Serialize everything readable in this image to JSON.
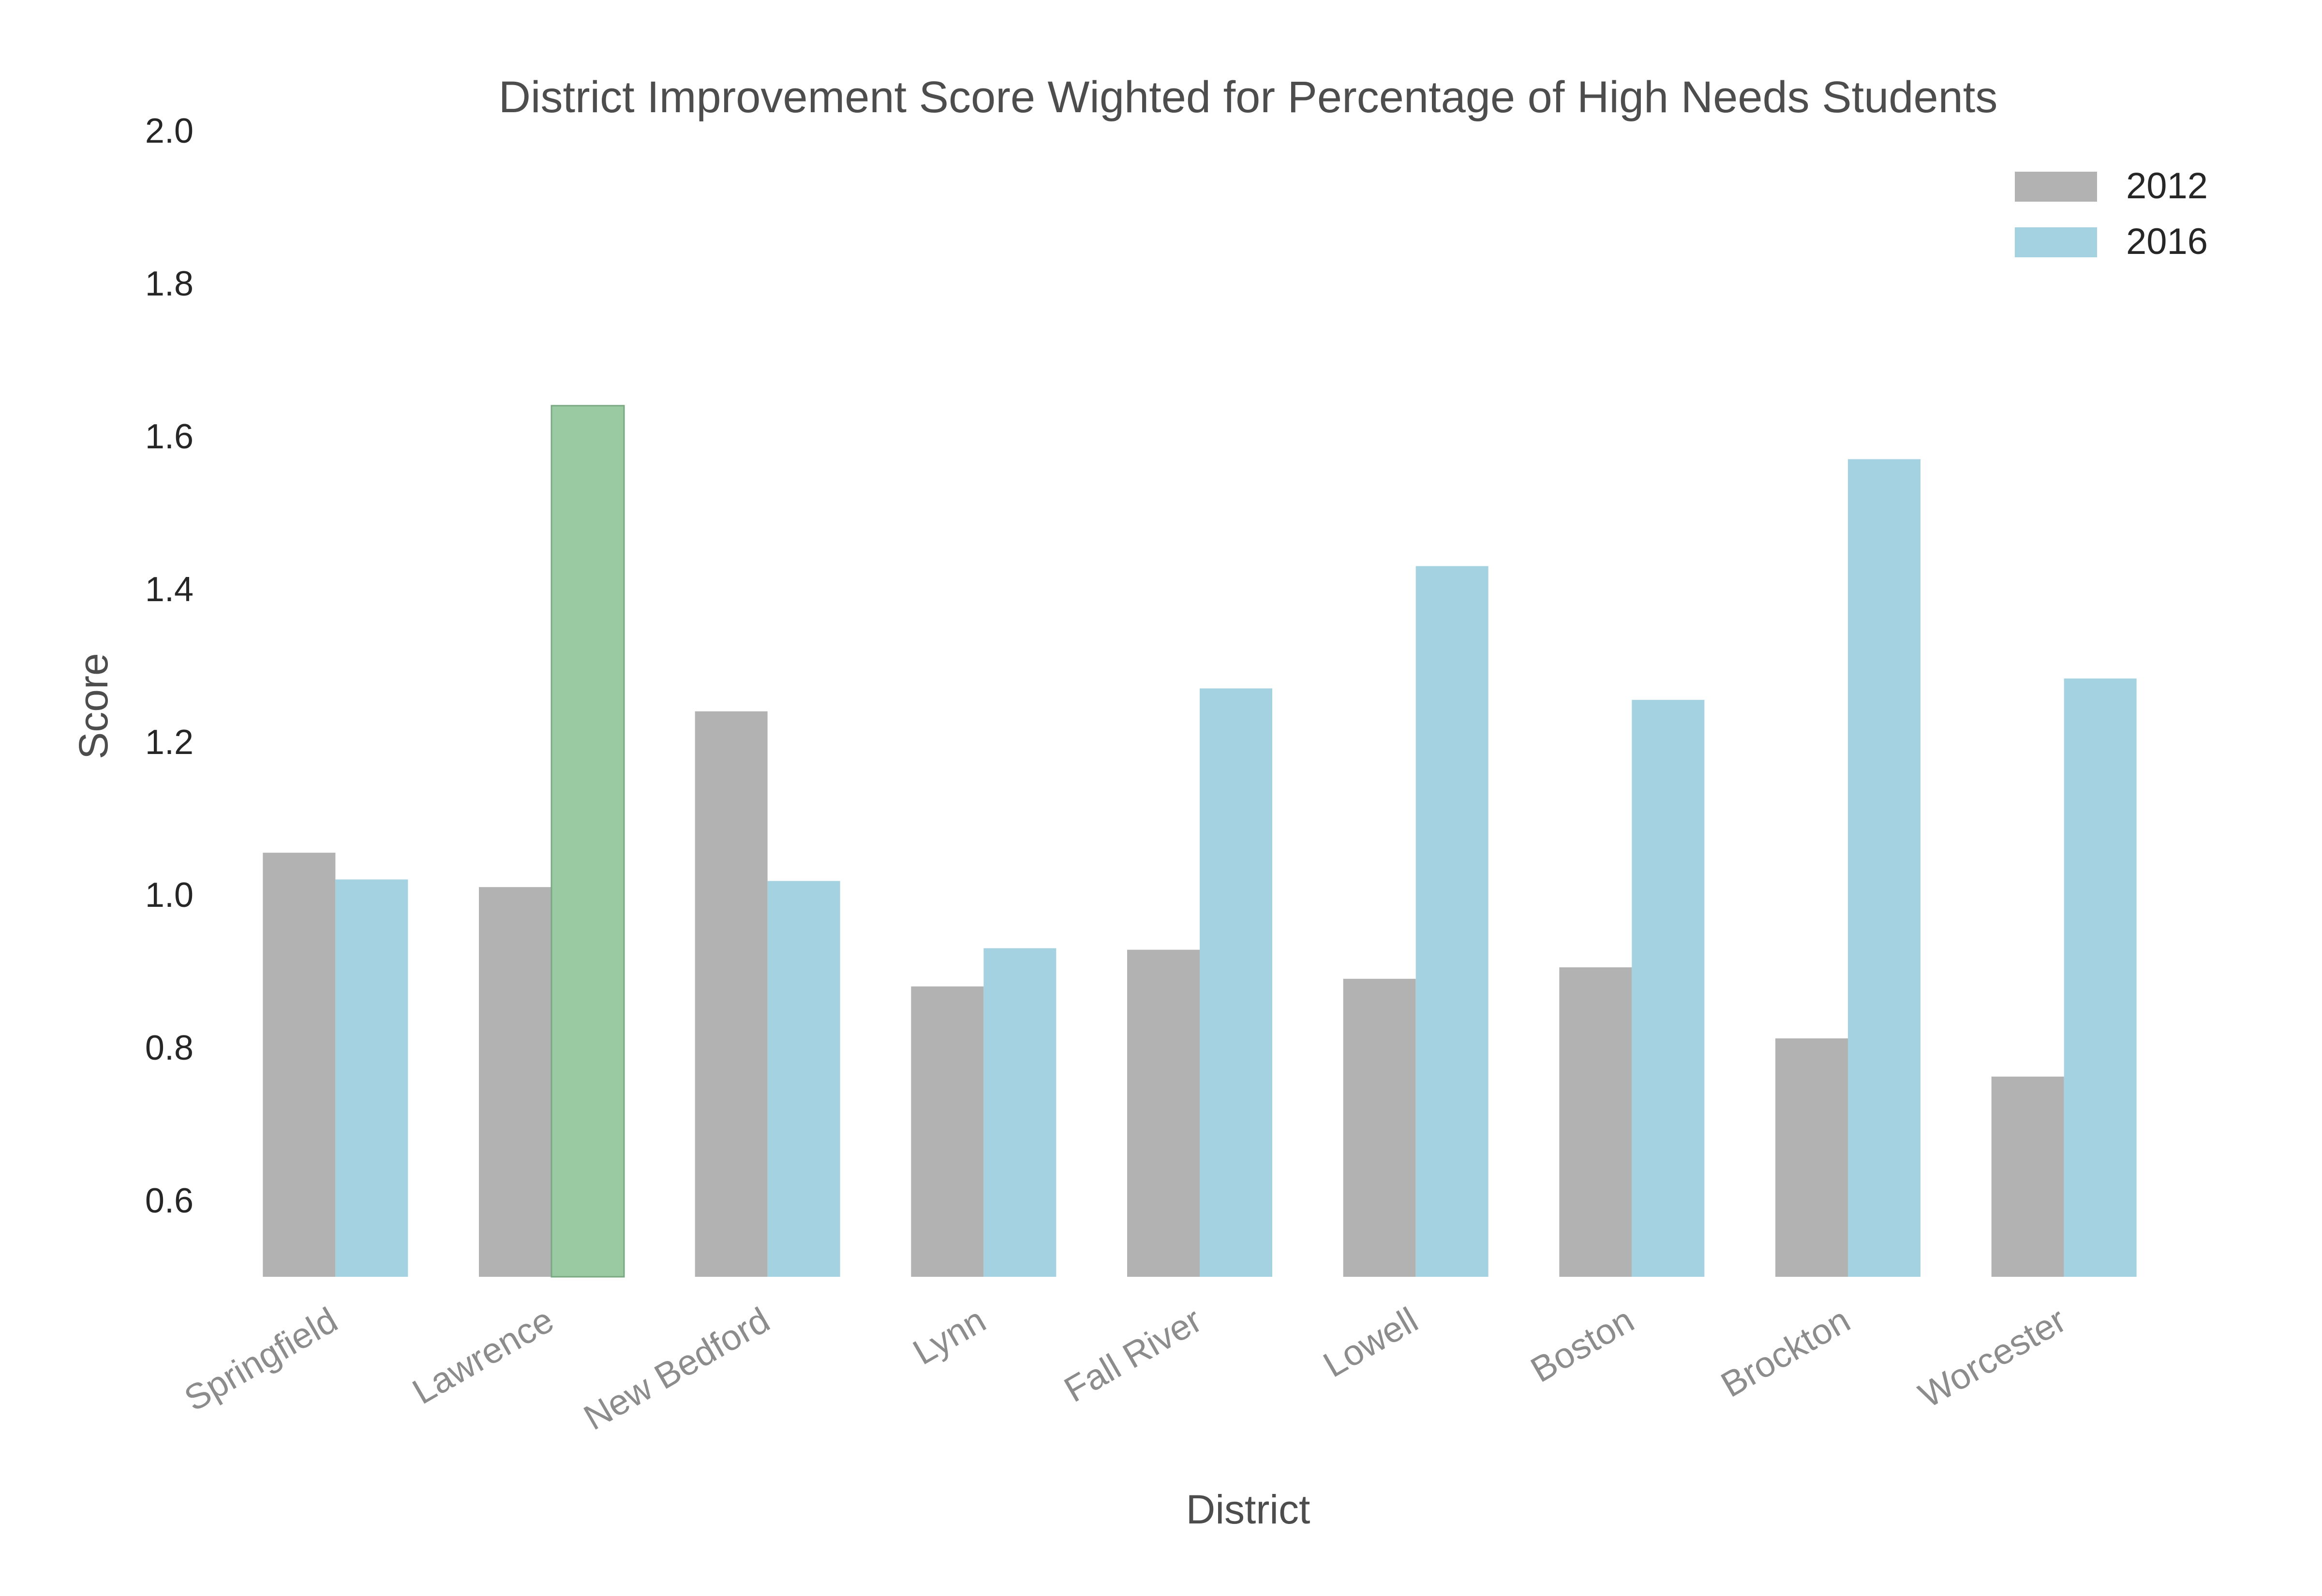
{
  "chart_data": {
    "type": "bar",
    "title": "District Improvement Score Wighted for Percentage of High Needs Students",
    "xlabel": "District",
    "ylabel": "Score",
    "ylim": [
      0.5,
      2.0
    ],
    "yticks": [
      "0.6",
      "0.8",
      "1.0",
      "1.2",
      "1.4",
      "1.6",
      "1.8",
      "2.0"
    ],
    "grid": false,
    "legend_position": "top-right",
    "categories": [
      "Springfield",
      "Lawrence",
      "New Bedford",
      "Lynn",
      "Fall River",
      "Lowell",
      "Boston",
      "Brockton",
      "Worcester"
    ],
    "series": [
      {
        "name": "2012",
        "color": "#b2b2b2",
        "values": [
          1.055,
          1.01,
          1.24,
          0.88,
          0.928,
          0.89,
          0.905,
          0.812,
          0.762
        ]
      },
      {
        "name": "2016",
        "color": "#a5d2e1",
        "highlight_color": "#9acaa2",
        "highlight_categories": [
          "Lawrence"
        ],
        "values": [
          1.02,
          1.64,
          1.018,
          0.93,
          1.27,
          1.43,
          1.255,
          1.57,
          1.283
        ]
      }
    ]
  }
}
